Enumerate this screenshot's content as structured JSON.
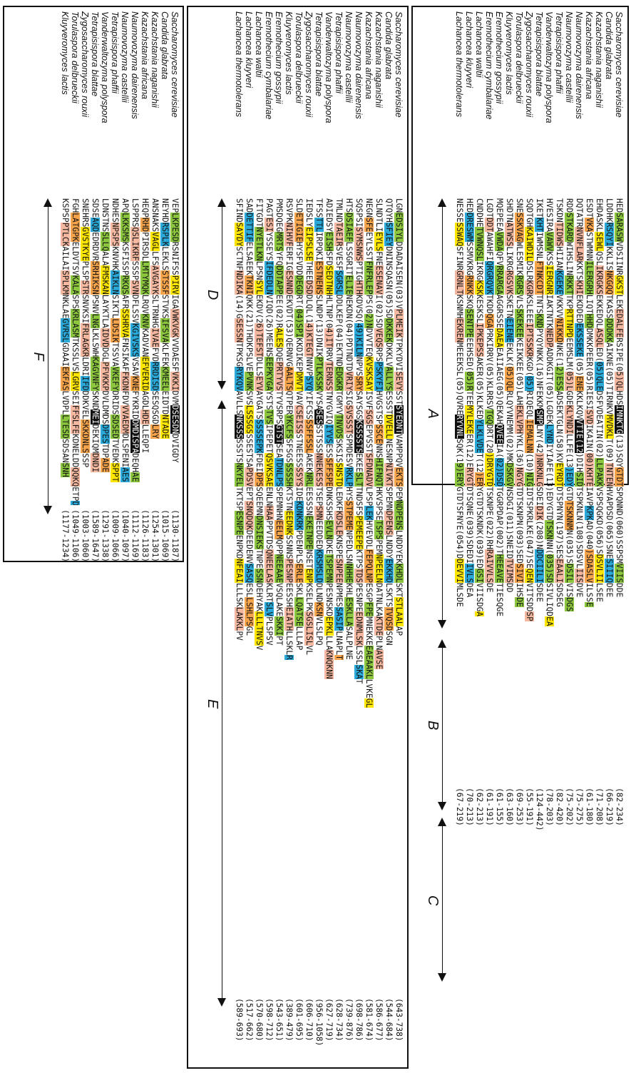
{
  "panels": [
    {
      "id": "panel-1",
      "species": [
        "Saccharomyces cerevisiae",
        "Candida glabrata",
        "Kazachstania naganishii",
        "Kazachstania africana",
        "Naumovozyma dairenensis",
        "Naumovozyma castellii",
        "Tetrapisispora phaffii",
        "Vanderwaltozyma polyspora",
        "Tetrapisispora blattae",
        "Zygosaccharomyces rouxii",
        "Torulaspora delbrueckii",
        "Kluyveromyces lactis",
        "Eremothecium gossypii",
        "Eremothecium cymbalariae",
        "Lachancea waltii",
        "Lachancea kluyveri",
        "Lachancea thermotolerans"
      ],
      "segments": [
        {
          "label": "A"
        },
        {
          "label": "B"
        },
        {
          "label": "C"
        }
      ],
      "sequences": [
        "HEDSARASWVDSIINRGKSTLEKEDALFERSIPE(05)QLHDSIMNKTG(13)SQYGTDTSPQNND(060)SSPSMVIISDDE",
        "LDDHKRSQYIKKLISNKGQQTKASSDDDKKAIKNE(05)TIRNKVMVDKLT(09)TNTENHVAPDSD(065)SNESIIIQDEE",
        "EHDASKLSEWLQSLIKRGKSEKKEDQLASQLED(05)QLEDSFVDEATIN(02)LLPAKKVSPSQGKD(056)SDSVLIILSEE",
        "ESDTVKASTWMNNILERGRHLIQTHHDDMKKPEER(05)RIESISVDIKAIN(00)KHTEIAVPKPKAD(040)SDASLVILSSE",
        "DQTATRNVNFLARKKTSKHIEKDDEDEKSSEKE(05)ENEKKLKQVVTIE(12)DIHSIDTSPKNLN(108)SDSVLIISDVE",
        "RDDSTKARDWIHSLINRKKTTKPRTTNPDEEMSLM(05)LGDEKLYNDILLFE(13)EDYGTDTSKNNMN(035)SDSILVISDGS",
        "TSKDNTIDWSHIIANKGEKEVKKVVNIKKDNKE(12)ESSADSEKTGLN(58)KVEYRDTDTSPNYN(197)SESEAALISDSEG",
        "HVESIRAVAWVKSSIERGNRIAKTNTKNEDPADDKGIT(05)LGDEKLYNDIYIAFE(13)EDYGTDTSKNNN(035)SDSIVLIQDEA",
        "IKETKHTIWMSNLFTNKCDTTNTSKNDPYQYNKK(16)NFEKKMSMPLNY(42)NRKNLGSDEIDIK(208)NDDCIILISDEE",
        "SQDTGHKAIWDILDSLRKGRKSLEEEIPTSSKRKGD(05)RIQEQLIEMALNN(10)NIGIDTSPKRLKE(047)SEQENVITSDDSP",
        "SNESSKVAGWLESMIKRGRSVLSSKEKEEKEIKKEE(05)LAHEKLVPHYKL(36)NGYGTDTSKNPN(093)SEDSIVIIHSDE",
        "SHDTNATWSSLIKRGRGSVKSKETNEIENEEKLK(05)QLRLQYVNEMM(02)MKDSKGVNSDGI(011)SNEIDTVIMSDD",
        "MQEPEEAVWDAQFVRRARGAAGGRSSEDAEAEAIIAEG(05)QEKAHQVEEIA(02)DSDTGGRPDAP(002)THEEAVETIESQGE",
        "LGDTDDTAWAHFIQRGRQVKTKDDQGAPRKIRRV(05)KLRRSVTGQDRT(20)DRYGTDTSKNPE(022)RHRAIVVLSDE",
        "CNDDHETVWNQSLIKRGKSKKESKSLIPKEPSSAKER(05)KLKEDYLKLVDET(12)ERYGTDTSKNDK(039)EDGSIVIISDGA",
        "HEDDRESWMSSMVKRGRNKKSKQSENTPEEEHSED(05)RTEEMYLEKEER(12)ERYGTDTSQNE(039)SDEDIIVLSDEA",
        "NESSESSWAQSFINRGRNLTKSNMHEKRENMEEEKSL(05)QVRERYVNLSQK(19)ERYGTDTSFNYE(054)DDEVVIMLSDE"
      ],
      "ranges": [
        "(82-234)",
        "(66-219)",
        "(71-208)",
        "(61-180)",
        "(75-275)",
        "(75-202)",
        "(82-420)",
        "(78-203)",
        "(124-442)",
        "(55-191)",
        "(69-253)",
        "(63-160)",
        "(61-155)",
        "(61-191)",
        "(62-213)",
        "(70-213)",
        "(67-219)"
      ]
    },
    {
      "id": "panel-2",
      "species": [
        "Saccharomyces cerevisiae",
        "Candida glabrata",
        "Kazachstania naganishii",
        "Kazachstania africana",
        "Naumovozyma dairenensis",
        "Naumovozyma castellii",
        "Tetrapisispora phaffii",
        "Vanderwaltozyma polyspora",
        "Tetrapisispora blattae",
        "Zygosaccharomyces rouxii",
        "Torulaspora delbrueckii",
        "Kluyveromyces lactis",
        "Eremothecium gossypii",
        "Eremothecium cymbalariae",
        "Lachancea waltii",
        "Lachancea kluyveri",
        "Lachancea thermotolerans"
      ],
      "segments": [
        {
          "label": "D"
        },
        {
          "label": "E"
        }
      ],
      "sequences": [
        "LGNEDSIYLDDADAISEN(03)VPLMEIKTPKYDVISEVYSSTSYEDNTVAMPPQVEKTSPEMNDPENSLNDDYEKKHDLSKTSTLAALAP",
        "QTQYHSFIEYDNINSQASN(05)SDDKKEKDKKLVALLYSESSSTDVELLNESNPNIVKTSPEMNDPENSLNDDYEKKHDLSKTSTVQSDSGN",
        "SLNDTLIEYLSFNEESENAVI(02)SDVEQSRPSPSKYFIHVGSTSPSSCENNSHIFNQTHKVSPSETSPSPEMNPEELNDATNLKAKTDEPLNAVSE",
        "NEGNSFEEYLSSTFNFRLEPPS(02)NDVVTEQKVSKSAYISVFSGSEPVSSTSFDNADVLPSPLEKHVEVDLFEPQLNPESGPFPEMNEKKEEAEAAKLLVKEGL",
        "SQSPSISYMSNWSPTIGHTHKDVSQ(49)KILNNPVSSRYSAYSGSKSSSSTSEKEESLTTNDSFSPEMEEPEKTPSTDSPESNPEEDNMLSKLSSLSKAT",
        "HTSDSIAEFLSSGRITELIENEKDN(04)PDTNDTDVRIYSIGSVSSSTSPMDESVRKLPHYSSTPEMENPEDLSNNHHEKHLESKLLASALPLNE",
        "TMLNDTAEIRSVESFSGRSLDDLKEP(04)EKTNDEDGKRTGMYVTNVDSSKSISSNSTDLEDKFKDSLEKNSPESNPEENPMESSASIPLNAPLT",
        "ADIEDSYEISHSFDSEDTNHHLTNP(04)ITRRVTERNSSTNYGVIQIYVSESSSFFSPEDNKSSHSEVLNDKETSPEMNPESNSKDEPKLLLAKNQKNN",
        "TFSSTTLIRPQKIESTNENSSLNDP(13)DNIKPTLKSSKVYSASESSSTSSSNNEKESSTSEPSMNEEDDEDKRSMSLDDLNDKSNVLSLPQ",
        "IEDSLYEIPSLSETHEEDSDDLQL(14)KTEGTNNVPSYQYIFCSSSSFFSSLAKEKNRLEESSSNEKETNPENSETENPKSELPKSGSLISLVL",
        "SLDETIGIEHYSFVDDDEGDRT(04)SPIKKDIKEPDMVTVAVCSEISSSTNEESSSSYSIDEKDNKRKPDENPLSERLESKLLQATSELLLAP",
        "RSVPKNIHVFERFIGESNNDEKVDT(53)QERNVGAALTSQTPERYKCFSSFSGSSSSSHKTSTNEEDNKSSNNSPESNPEESSHEIATHLLSKLR",
        "PMSDQEGMRTSYFQDDTAPPEE(02)RALESDQEPRTYVSTYVSRPSGTSTSEATDNLPSSPEMNHNEELMQPPNEEAAEVSQLAKESKKIPT",
        "PAGTESIYSSEYSIFDEDLNVIQD(26)MEENSEEPKYGAYSTSTVSIPEPETQSVKSAEENLNHAAPPVTDSQNEELASKLRTSLVPLSPSV",
        "FITGDTNYETLKNLPSNSYLEKDV(26)TEFSTDLLSEYVAYGATSSSSSEPKFDEIDPSSQEEMNDNSIEKSTNPESSNDEHYAKLLLTNVSV",
        "SADDETTIFELSAEEKTKNIQKK(21)THDKPSLVEPVNKSVSLSSSGSSSESTSAPDSVEPTSNQDQKDEEDENVSASQESLLSHLPSGL",
        "SFINDSAYDYSCTNFNDIKA(14)GSESSNTPKSGRYKQVAVLLSNKSSSSSSTSNKYELTKTSPESNPEENPKDNFEAILLLSKLAKKLPV"
      ],
      "ranges": [
        "(643-738)",
        "(544-684)",
        "(586-677)",
        "(581-674)",
        "(698-786)",
        "(739-876)",
        "(628-734)",
        "(627-719)",
        "(956-1058)",
        "(606-710)",
        "(601-695)",
        "(389-479)",
        "(543-651)",
        "(598-712)",
        "(570-680)",
        "(517-662)",
        "(589-693)"
      ]
    },
    {
      "id": "panel-3",
      "species": [
        "Saccharomyces cerevisiae",
        "Candida glabrata",
        "Kazachstania naganishii",
        "Kazachstania africana",
        "Naumovozyma dairenensis",
        "Naumovozyma castellii",
        "Tetrapisispora phaffii",
        "Vanderwaltozyma polyspora",
        "Tetrapisispora blattae",
        "Zygosaccharomyces rouxii",
        "Torulaspora delbrueckii",
        "Kluyveromyces lactis"
      ],
      "segments": [
        {
          "label": "F"
        }
      ],
      "sequences": [
        "VEPLKPESDRSNIFSSPIRVIGAVWKVGKVVDAESFVKKIDVMDSESDNDVIGDY",
        "NEYHDRSPLKLEKLSSTSSFSTVKSIFSVAKLFEKKMEELEIDTDNTADE",
        "ANSNAKSVAGLLFSAVGAYKSLTRNHGIVAEFVDRRDISDSESQSGDLRY",
        "HEQPRHDPIRSDLLMTYMQKLRQVKNVKADVANEFVERIDAGDLHDELLEQPI",
        "LSPPRSQSLIKRFSSSPSVNDFLSSVKGIVSKSVSAVKNEFYKRIDDMDISPADEQHAE",
        "APQLKKSMSKSFISSPRKQSAFRSSHRVAFNSIKAFFKDNFDVVVAEDMDLSPENIAES",
        "NDHESNPSPSKNVHKAIKLNSIKTLLDSIKTSSVAVKEFYDRIDSSDSEDTVEDKSPPT",
        "LDNSTNSSLLQALAFMSKANLAYKTLAIDVDDGLPFVKKPDVLDMDSDPESTDPADE",
        "SDSEAQDEDRDVRSRHIKSNPSNVLNGLKLSWHKAGVNFYSKNDMEIDEKIQMDNDI",
        "SNEHRSGVSTKYEPLSPSTRSNVKSIFRLAGKRLDRIIFDDDKVELSKKDNLSSSP",
        "FGHLATGPKELDVTSVKALASPSKRLASMTKSSLVSLGRVSEIFFSLFEKDNELDDQQKQETPD",
        "KSPSPPTLCKAILAISPLKMNKLAEGVRSLGDAAIEKFASLVDPLLTESDSDSANSNH"
      ],
      "ranges": [
        "(1130-1187)",
        "(1015-1069)",
        "(1254-1301)",
        "(1126-1183)",
        "(1112-1169)",
        "(1040-1097)",
        "(1009-1066)",
        "(1291-1338)",
        "(1589-1647)",
        "(1003-1060)",
        "(1049-1106)",
        "(1177-1234)"
      ]
    }
  ]
}
